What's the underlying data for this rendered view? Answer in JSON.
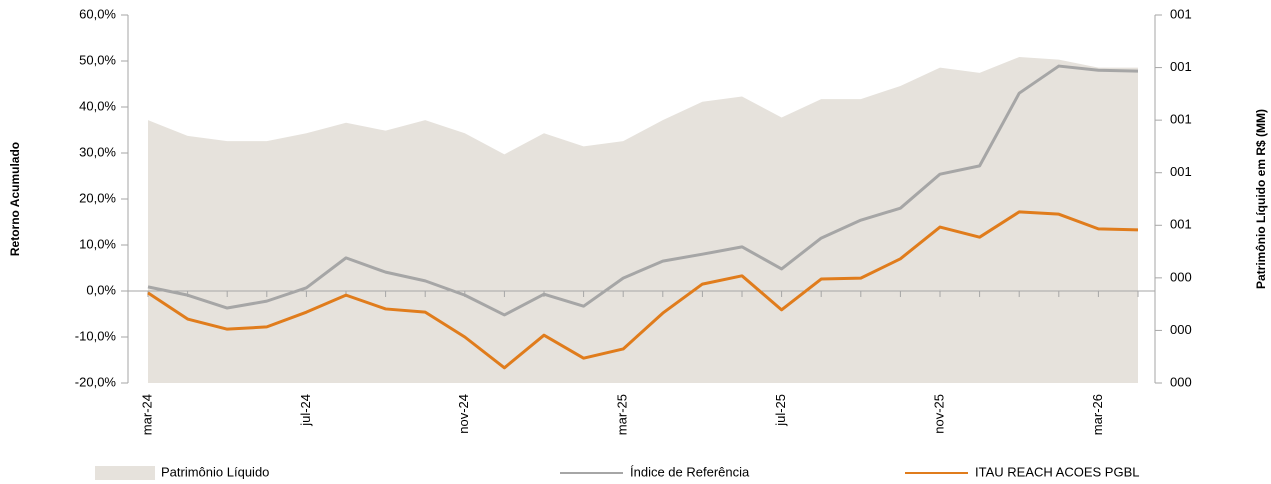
{
  "chart_data": {
    "type": "line",
    "y_label": "Retorno Acumulado",
    "y2_label": "Patrimônio Líquido em R$ (MM)",
    "categories": [
      "mar-24",
      null,
      null,
      null,
      "jul-24",
      null,
      null,
      null,
      "nov-24",
      null,
      null,
      null,
      "mar-25",
      null,
      null,
      null,
      "jul-25",
      null,
      null,
      null,
      "nov-25",
      null,
      null,
      null,
      "mar-26",
      null
    ],
    "ylim": [
      -20,
      60
    ],
    "yticks": [
      {
        "value": -20,
        "label": "-20,0%"
      },
      {
        "value": -10,
        "label": "-10,0%"
      },
      {
        "value": 0,
        "label": "0,0%"
      },
      {
        "value": 10,
        "label": "10,0%"
      },
      {
        "value": 20,
        "label": "20,0%"
      },
      {
        "value": 30,
        "label": "30,0%"
      },
      {
        "value": 40,
        "label": "40,0%"
      },
      {
        "value": 50,
        "label": "50,0%"
      },
      {
        "value": 60,
        "label": "60,0%"
      }
    ],
    "y2lim": [
      0,
      1.4
    ],
    "y2ticks": [
      {
        "value": 0,
        "label": "000"
      },
      {
        "value": 0.2,
        "label": "000"
      },
      {
        "value": 0.4,
        "label": "000"
      },
      {
        "value": 0.6,
        "label": "001"
      },
      {
        "value": 0.8,
        "label": "001"
      },
      {
        "value": 1.0,
        "label": "001"
      },
      {
        "value": 1.2,
        "label": "001"
      },
      {
        "value": 1.4,
        "label": "001"
      }
    ],
    "legend": "bottom",
    "series": [
      {
        "name": "Patrimônio Líquido",
        "kind": "area",
        "axis": "y2",
        "color": "#e6e2dc",
        "values": [
          1.0,
          0.94,
          0.92,
          0.92,
          0.95,
          0.99,
          0.96,
          1.0,
          0.95,
          0.87,
          0.95,
          0.9,
          0.92,
          1.0,
          1.07,
          1.09,
          1.01,
          1.08,
          1.08,
          1.13,
          1.2,
          1.18,
          1.24,
          1.23,
          1.2,
          1.2
        ]
      },
      {
        "name": "Índice de Referência",
        "kind": "line",
        "color": "#a6a6a6",
        "values": [
          0.9,
          -0.9,
          -3.7,
          -2.2,
          0.7,
          7.2,
          4.1,
          2.2,
          -0.9,
          -5.2,
          -0.7,
          -3.3,
          2.8,
          6.5,
          8.0,
          9.6,
          4.8,
          11.5,
          15.4,
          18.0,
          25.4,
          27.2,
          43.0,
          48.9,
          48.0,
          47.8
        ]
      },
      {
        "name": "ITAU REACH ACOES PGBL",
        "kind": "line",
        "color": "#e07c1c",
        "values": [
          -0.4,
          -6.1,
          -8.3,
          -7.8,
          -4.6,
          -0.9,
          -3.9,
          -4.6,
          -10.0,
          -16.7,
          -9.6,
          -14.6,
          -12.6,
          -4.8,
          1.5,
          3.3,
          -4.1,
          2.6,
          2.8,
          7.0,
          13.9,
          11.7,
          17.2,
          16.7,
          13.5,
          13.3
        ]
      }
    ]
  }
}
